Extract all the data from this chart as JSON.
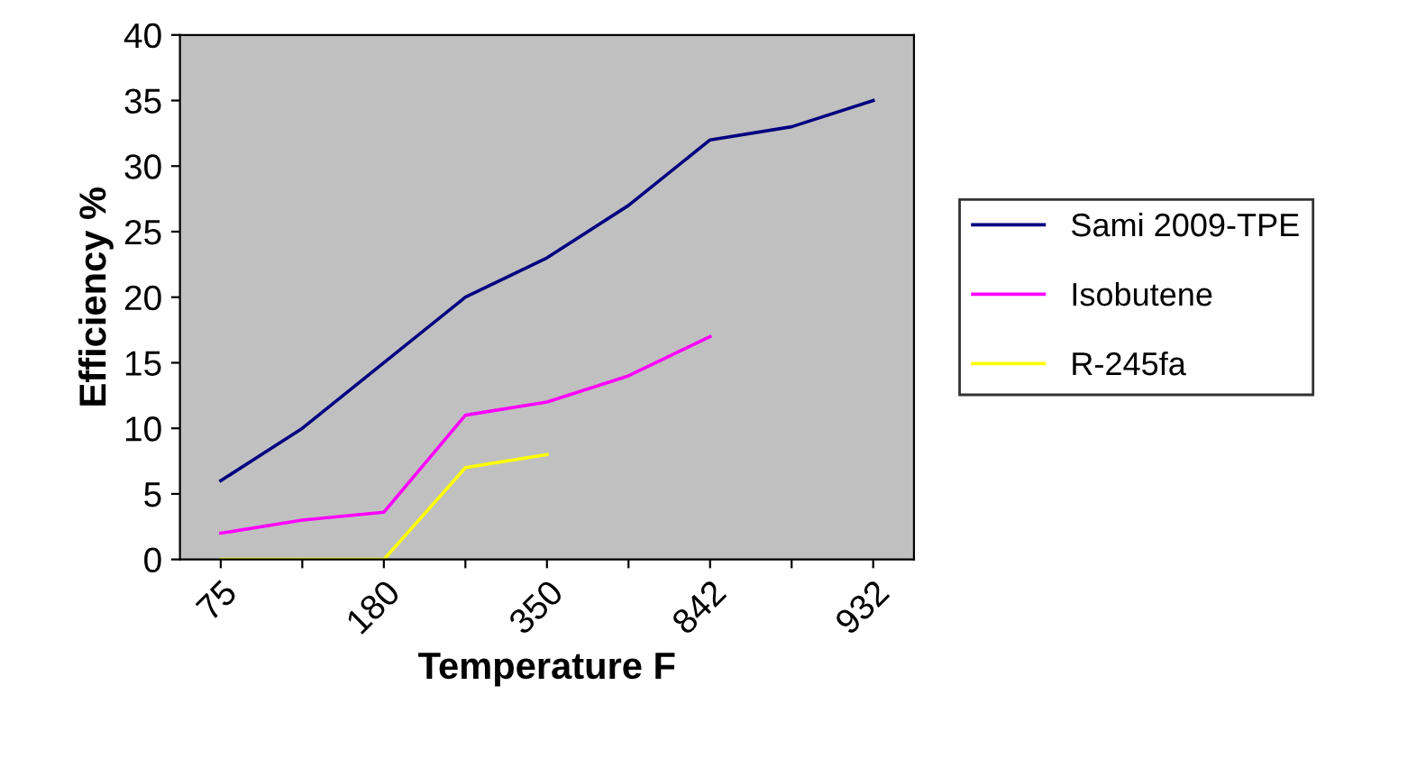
{
  "chart_data": {
    "type": "line",
    "xlabel": "Temperature F",
    "ylabel": "Efficiency %",
    "categories": [
      "75",
      null,
      "180",
      null,
      "350",
      null,
      "842",
      null,
      "932"
    ],
    "series": [
      {
        "name": "Sami 2009-TPE",
        "color": "#000080",
        "values": [
          6,
          10,
          15,
          20,
          23,
          27,
          32,
          33,
          35
        ]
      },
      {
        "name": "Isobutene",
        "color": "#ff00ff",
        "values": [
          2,
          3,
          3.6,
          11,
          12,
          14,
          17,
          null,
          null
        ]
      },
      {
        "name": "R-245fa",
        "color": "#ffff00",
        "values": [
          0,
          0,
          0,
          7,
          8,
          null,
          null,
          null,
          null
        ]
      }
    ],
    "ylim": [
      0,
      40
    ],
    "yticks": [
      0,
      5,
      10,
      15,
      20,
      25,
      30,
      35,
      40
    ],
    "grid": false,
    "legend": "right",
    "marker": "none",
    "line_style": "solid"
  }
}
